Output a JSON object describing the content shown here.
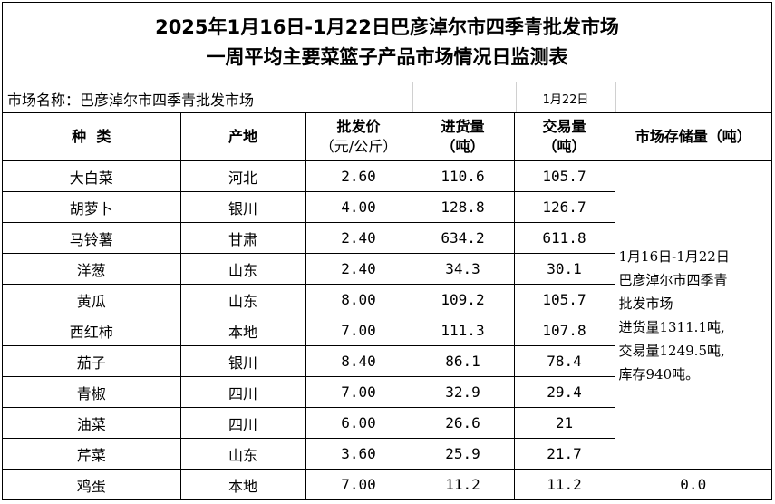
{
  "title": {
    "line1": "2025年1月16日-1月22日巴彦淖尔市四季青批发市场",
    "line2": "一周平均主要菜篮子产品市场情况日监测表"
  },
  "market": {
    "label": "市场名称：巴彦淖尔市四季青批发市场",
    "date": "1月22日"
  },
  "headers": {
    "kind": "种  类",
    "origin": "产地",
    "price_l1": "批发价",
    "price_l2": "（元/公斤）",
    "in_l1": "进货量",
    "in_l2": "（吨）",
    "trade_l1": "交易量",
    "trade_l2": "（吨）",
    "storage": "市场存储量（吨）"
  },
  "rows": [
    {
      "name": "大白菜",
      "origin": "河北",
      "price": "2.60",
      "incoming": "110.6",
      "traded": "105.7"
    },
    {
      "name": "胡萝卜",
      "origin": "银川",
      "price": "4.00",
      "incoming": "128.8",
      "traded": "126.7"
    },
    {
      "name": "马铃薯",
      "origin": "甘肃",
      "price": "2.40",
      "incoming": "634.2",
      "traded": "611.8"
    },
    {
      "name": "洋葱",
      "origin": "山东",
      "price": "2.40",
      "incoming": "34.3",
      "traded": "30.1"
    },
    {
      "name": "黄瓜",
      "origin": "山东",
      "price": "8.00",
      "incoming": "109.2",
      "traded": "105.7"
    },
    {
      "name": "西红柿",
      "origin": "本地",
      "price": "7.00",
      "incoming": "111.3",
      "traded": "107.8"
    },
    {
      "name": "茄子",
      "origin": "银川",
      "price": "8.40",
      "incoming": "86.1",
      "traded": "78.4"
    },
    {
      "name": "青椒",
      "origin": "四川",
      "price": "7.00",
      "incoming": "32.9",
      "traded": "29.4"
    },
    {
      "name": "油菜",
      "origin": "四川",
      "price": "6.00",
      "incoming": "26.6",
      "traded": "21"
    },
    {
      "name": "芹菜",
      "origin": "山东",
      "price": "3.60",
      "incoming": "25.9",
      "traded": "21.7"
    },
    {
      "name": "鸡蛋",
      "origin": "本地",
      "price": "7.00",
      "incoming": "11.2",
      "traded": "11.2",
      "storage": "0.0"
    }
  ],
  "storage_note": {
    "line1": "1月16日-1月22日",
    "line2": "巴彦淖尔市四季青",
    "line3": "批发市场",
    "line4": "进货量1311.1吨,",
    "line5": "交易量1249.5吨,",
    "line6": "库存940吨。"
  }
}
